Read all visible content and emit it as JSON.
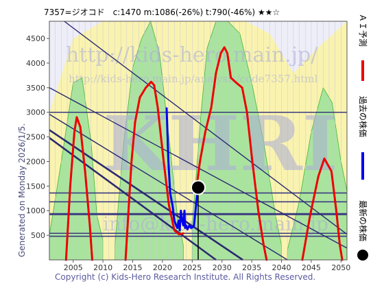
{
  "header": {
    "title": "7357=ジオコド　c:1470  m:1086(-26%)  t:790(-46%)  ★★☆"
  },
  "side_note": "Generated on Monday 2026/1/5.",
  "watermark": {
    "line1": "http://kids-hero.main.jp/",
    "line2": "http://kids-hero.main.jp/analysis/code7357.html",
    "big": "KHRI",
    "line3": "info@kids-hero.main.jp"
  },
  "footer": {
    "copyright": "Copyright (c) Kids-Hero Research Institute. All Rights Reserved."
  },
  "legend": [
    {
      "label": "ＡＩ予測",
      "color": "#ee0000",
      "kind": "line"
    },
    {
      "label": "過去の株価",
      "color": "#0000ee",
      "kind": "line"
    },
    {
      "label": "最新の株価",
      "color": "#000000",
      "kind": "dot"
    }
  ],
  "colors": {
    "green_fill": "#9be29b",
    "yellow_fill": "#fbf3a6",
    "lavender_fill": "#ccccee",
    "green_edge": "#22aa22",
    "hline": "#3a3a80",
    "diag": "#2a2a70",
    "marker_line": "#000000"
  },
  "chart_data": {
    "type": "line",
    "title": "7357=ジオコド",
    "xlim": [
      2001,
      2051
    ],
    "ylim": [
      0,
      4850
    ],
    "x_ticks": [
      2005,
      2010,
      2015,
      2020,
      2025,
      2030,
      2035,
      2040,
      2045,
      2050
    ],
    "y_ticks": [
      500,
      1000,
      1500,
      2000,
      2500,
      3000,
      3500,
      4000,
      4500
    ],
    "current": {
      "year": 2026.0,
      "price": 1470
    },
    "horizontal_lines": [
      {
        "y": 3000,
        "width": 1.6
      },
      {
        "y": 1360,
        "width": 1.6
      },
      {
        "y": 1180,
        "width": 1.6
      },
      {
        "y": 930,
        "width": 3
      },
      {
        "y": 540,
        "width": 1.6
      },
      {
        "y": 480,
        "width": 1.6
      }
    ],
    "diagonal_lines": [
      {
        "x1": 2003.5,
        "y1": 4850,
        "x2": 2051,
        "y2": 520,
        "width": 1.4
      },
      {
        "x1": 2001,
        "y1": 3500,
        "x2": 2051,
        "y2": 240,
        "width": 1.4
      },
      {
        "x1": 2001,
        "y1": 2960,
        "x2": 2041,
        "y2": 0,
        "width": 1.4
      },
      {
        "x1": 2001,
        "y1": 2640,
        "x2": 2033.5,
        "y2": 0,
        "width": 2.6
      },
      {
        "x1": 2001,
        "y1": 2480,
        "x2": 2029,
        "y2": 0,
        "width": 2.6
      }
    ],
    "series": [
      {
        "name": "ＡＩ予測",
        "color": "#ee0000",
        "segments": [
          [
            [
              2003.8,
              0
            ],
            [
              2004.5,
              1500
            ],
            [
              2005.2,
              2600
            ],
            [
              2005.6,
              2900
            ],
            [
              2006.2,
              2700
            ],
            [
              2007,
              1800
            ],
            [
              2007.8,
              700
            ],
            [
              2008.2,
              0
            ]
          ],
          [
            [
              2013.8,
              0
            ],
            [
              2014.3,
              1000
            ],
            [
              2014.8,
              2000
            ],
            [
              2015.4,
              2800
            ],
            [
              2016.2,
              3300
            ],
            [
              2017.2,
              3500
            ],
            [
              2018.1,
              3620
            ],
            [
              2018.6,
              3550
            ],
            [
              2019.2,
              3100
            ],
            [
              2020.2,
              2000
            ],
            [
              2021.1,
              1100
            ],
            [
              2022,
              600
            ],
            [
              2022.8,
              520
            ],
            [
              2023.5,
              540
            ]
          ],
          [
            [
              2025.7,
              1450
            ],
            [
              2026.3,
              2000
            ],
            [
              2027.2,
              2600
            ],
            [
              2028.2,
              3100
            ],
            [
              2029,
              3800
            ],
            [
              2029.8,
              4200
            ],
            [
              2030.4,
              4320
            ],
            [
              2030.9,
              4200
            ],
            [
              2031.5,
              3700
            ],
            [
              2032.4,
              3600
            ],
            [
              2033.4,
              3500
            ],
            [
              2034.2,
              3000
            ],
            [
              2035.1,
              2000
            ],
            [
              2036.1,
              1000
            ],
            [
              2037,
              300
            ],
            [
              2037.5,
              0
            ]
          ],
          [
            [
              2043.5,
              0
            ],
            [
              2044.8,
              900
            ],
            [
              2046.2,
              1700
            ],
            [
              2047.2,
              2060
            ],
            [
              2048.4,
              1800
            ],
            [
              2049.2,
              1000
            ],
            [
              2049.8,
              300
            ],
            [
              2050.2,
              0
            ]
          ]
        ]
      },
      {
        "name": "過去の株価",
        "color": "#0000ee",
        "segments": [
          [
            [
              2020.7,
              3080
            ],
            [
              2021.0,
              2000
            ],
            [
              2021.3,
              1350
            ],
            [
              2021.7,
              1100
            ],
            [
              2022.0,
              800
            ],
            [
              2022.3,
              700
            ],
            [
              2022.5,
              650
            ],
            [
              2022.7,
              800
            ],
            [
              2022.9,
              600
            ],
            [
              2023.1,
              1000
            ],
            [
              2023.3,
              800
            ],
            [
              2023.5,
              700
            ],
            [
              2023.7,
              1000
            ],
            [
              2023.8,
              650
            ],
            [
              2024.0,
              700
            ],
            [
              2024.2,
              620
            ],
            [
              2024.5,
              700
            ],
            [
              2024.8,
              650
            ],
            [
              2025.1,
              660
            ],
            [
              2025.3,
              700
            ],
            [
              2025.6,
              1050
            ],
            [
              2025.8,
              1300
            ],
            [
              2026.0,
              1470
            ]
          ]
        ]
      }
    ]
  }
}
